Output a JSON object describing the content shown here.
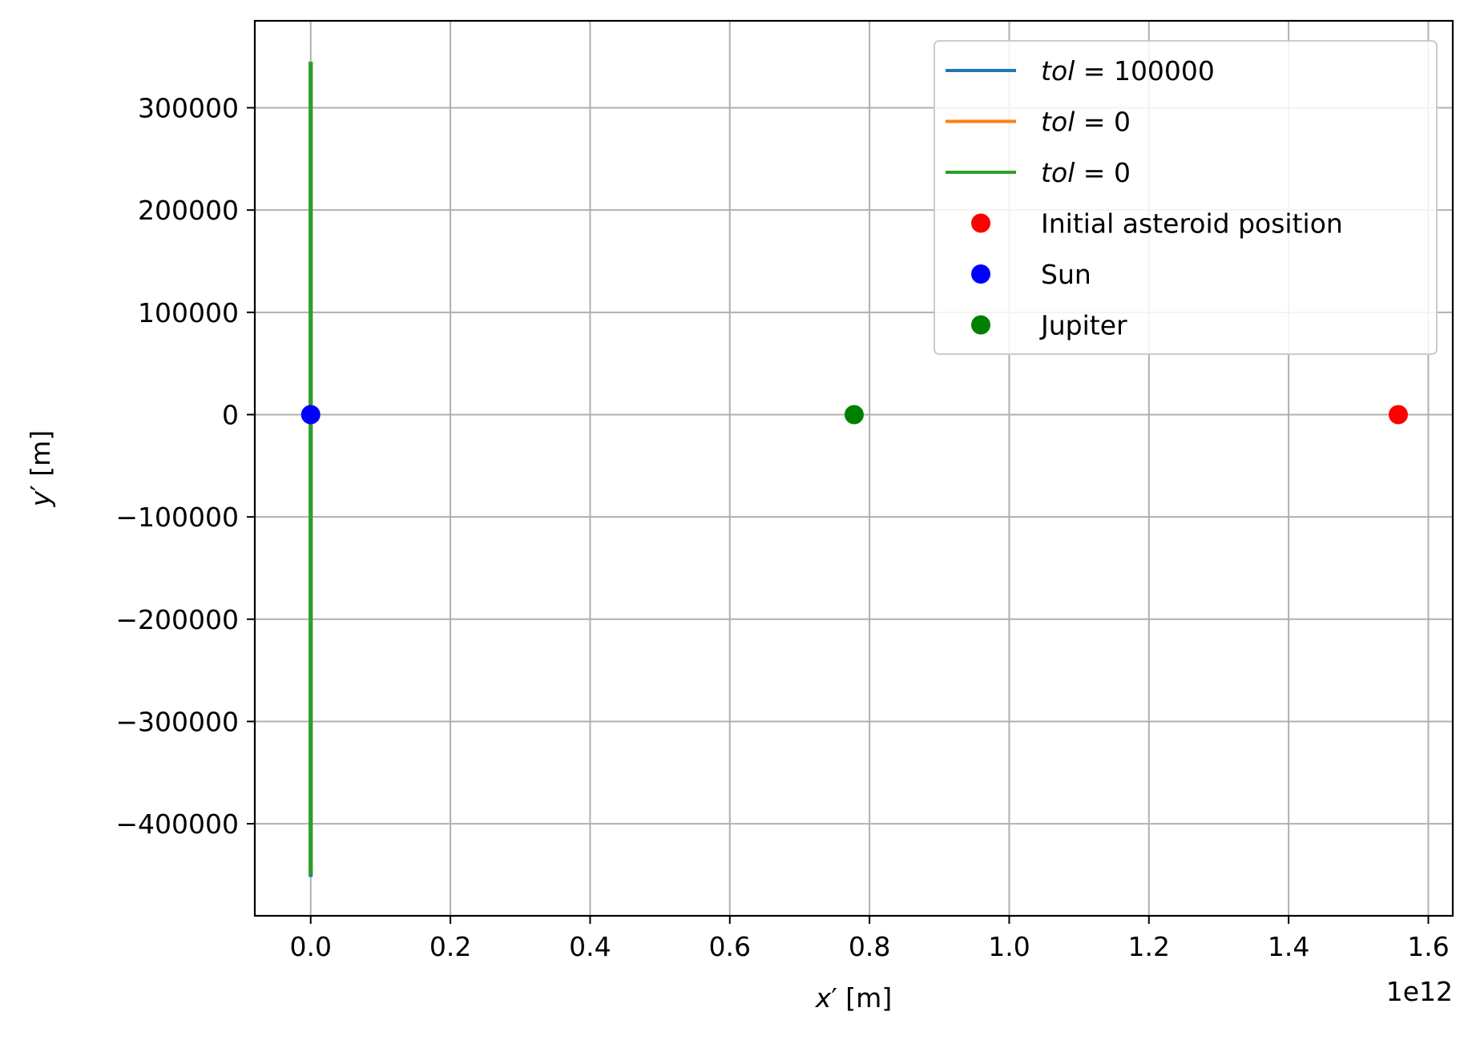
{
  "chart_data": {
    "type": "line",
    "title": "",
    "xlabel": {
      "var": "x",
      "prime": "′",
      "unit": " [m]"
    },
    "ylabel": {
      "var": "y",
      "prime": "′",
      "unit": " [m]"
    },
    "x_offset_label": "1e12",
    "x_scale": 1000000000000,
    "xlim": [
      -0.08,
      1.635
    ],
    "ylim": [
      -490000,
      385000
    ],
    "xticks": [
      0.0,
      0.2,
      0.4,
      0.6,
      0.8,
      1.0,
      1.2,
      1.4,
      1.6
    ],
    "xtick_labels": [
      "0.0",
      "0.2",
      "0.4",
      "0.6",
      "0.8",
      "1.0",
      "1.2",
      "1.4",
      "1.6"
    ],
    "yticks": [
      300000,
      200000,
      100000,
      0,
      -100000,
      -200000,
      -300000,
      -400000
    ],
    "ytick_labels": [
      "300000",
      "200000",
      "100000",
      "0",
      "−100000",
      "−200000",
      "−300000",
      "−400000"
    ],
    "grid": true,
    "legend_position": "top-right",
    "series": [
      {
        "name": {
          "var": "tol",
          "rest": " = 100000"
        },
        "color": "#1f77b4",
        "kind": "line",
        "x": [
          0.0,
          0.0
        ],
        "y": [
          -452000,
          345000
        ]
      },
      {
        "name": {
          "var": "tol",
          "rest": " = 0"
        },
        "color": "#ff7f0e",
        "kind": "line",
        "x": [
          0.0,
          0.0
        ],
        "y": [
          -450000,
          345000
        ]
      },
      {
        "name": {
          "var": "tol",
          "rest": " = 0"
        },
        "color": "#2ca02c",
        "kind": "line",
        "x": [
          0.0,
          0.0
        ],
        "y": [
          -450000,
          345000
        ]
      }
    ],
    "points": [
      {
        "name": "Initial asteroid position",
        "color": "#ff0000",
        "x": 1.557,
        "y": 0
      },
      {
        "name": "Sun",
        "color": "#0000ff",
        "x": 0.0,
        "y": 0
      },
      {
        "name": "Jupiter",
        "color": "#008000",
        "x": 0.778,
        "y": 0
      }
    ]
  }
}
